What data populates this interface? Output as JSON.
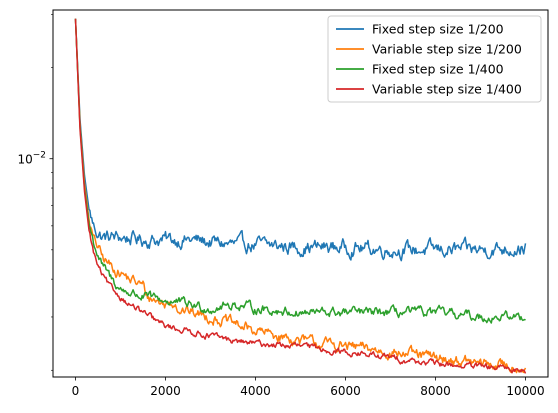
{
  "chart_data": {
    "type": "line",
    "title": "",
    "xlabel": "",
    "ylabel": "",
    "y_scale": "log",
    "xlim": [
      -500,
      10500
    ],
    "ylim": [
      0.0019,
      0.031
    ],
    "grid": false,
    "legend_position": "top-right",
    "x_ticks": [
      0,
      2000,
      4000,
      6000,
      8000,
      10000
    ],
    "x_tick_labels": [
      "0",
      "2000",
      "4000",
      "6000",
      "8000",
      "10000"
    ],
    "y_major_ticks": [
      0.01
    ],
    "y_tick_label_base": "10",
    "y_tick_label_exp": "−2",
    "y_minor_ticks": [
      0.002,
      0.003,
      0.004,
      0.005,
      0.006,
      0.007,
      0.008,
      0.009,
      0.02,
      0.03
    ],
    "series": [
      {
        "name": "Fixed step size 1/200",
        "color": "#1f77b4",
        "noise": 0.045,
        "x": [
          0,
          100,
          200,
          300,
          400,
          500,
          600,
          800,
          1000,
          1500,
          2000,
          2500,
          3000,
          3500,
          4000,
          5000,
          6000,
          7000,
          8000,
          9000,
          10000
        ],
        "y": [
          0.029,
          0.0135,
          0.0088,
          0.0068,
          0.006,
          0.0057,
          0.0055,
          0.0055,
          0.0055,
          0.0054,
          0.0054,
          0.0054,
          0.0053,
          0.0052,
          0.0052,
          0.0051,
          0.0051,
          0.005,
          0.005,
          0.005,
          0.0051
        ]
      },
      {
        "name": "Variable step size 1/200",
        "color": "#ff7f0e",
        "noise": 0.035,
        "x": [
          0,
          100,
          200,
          300,
          400,
          500,
          600,
          800,
          1000,
          1200,
          1500,
          1600,
          1800,
          2000,
          2200,
          2300,
          2600,
          3000,
          3500,
          4000,
          5000,
          6000,
          7000,
          8000,
          9000,
          10000
        ],
        "y": [
          0.029,
          0.013,
          0.0083,
          0.0063,
          0.0054,
          0.0051,
          0.0047,
          0.0044,
          0.0042,
          0.004,
          0.0038,
          0.0035,
          0.0034,
          0.0033,
          0.0034,
          0.0032,
          0.0031,
          0.003,
          0.00285,
          0.0027,
          0.0025,
          0.0024,
          0.0023,
          0.0022,
          0.0021,
          0.00205
        ]
      },
      {
        "name": "Fixed step size 1/400",
        "color": "#2ca02c",
        "noise": 0.03,
        "x": [
          0,
          100,
          200,
          300,
          400,
          500,
          600,
          800,
          1000,
          1500,
          2000,
          2500,
          3000,
          3500,
          4000,
          5000,
          6000,
          7000,
          8000,
          9000,
          10000
        ],
        "y": [
          0.029,
          0.0128,
          0.008,
          0.0061,
          0.0053,
          0.0048,
          0.0044,
          0.004,
          0.0037,
          0.0035,
          0.0034,
          0.0033,
          0.0032,
          0.0033,
          0.0032,
          0.0031,
          0.0031,
          0.0031,
          0.0031,
          0.003,
          0.003
        ]
      },
      {
        "name": "Variable step size 1/400",
        "color": "#d62728",
        "noise": 0.02,
        "x": [
          0,
          100,
          200,
          300,
          400,
          500,
          600,
          800,
          1000,
          1200,
          1500,
          1800,
          2000,
          2500,
          3000,
          3500,
          4000,
          5000,
          6000,
          7000,
          8000,
          9000,
          10000
        ],
        "y": [
          0.029,
          0.0125,
          0.0078,
          0.0058,
          0.0049,
          0.0044,
          0.0041,
          0.0037,
          0.0035,
          0.0033,
          0.0031,
          0.0029,
          0.0028,
          0.0027,
          0.0026,
          0.0025,
          0.00245,
          0.0024,
          0.0023,
          0.0022,
          0.0021,
          0.00205,
          0.002
        ]
      }
    ]
  }
}
